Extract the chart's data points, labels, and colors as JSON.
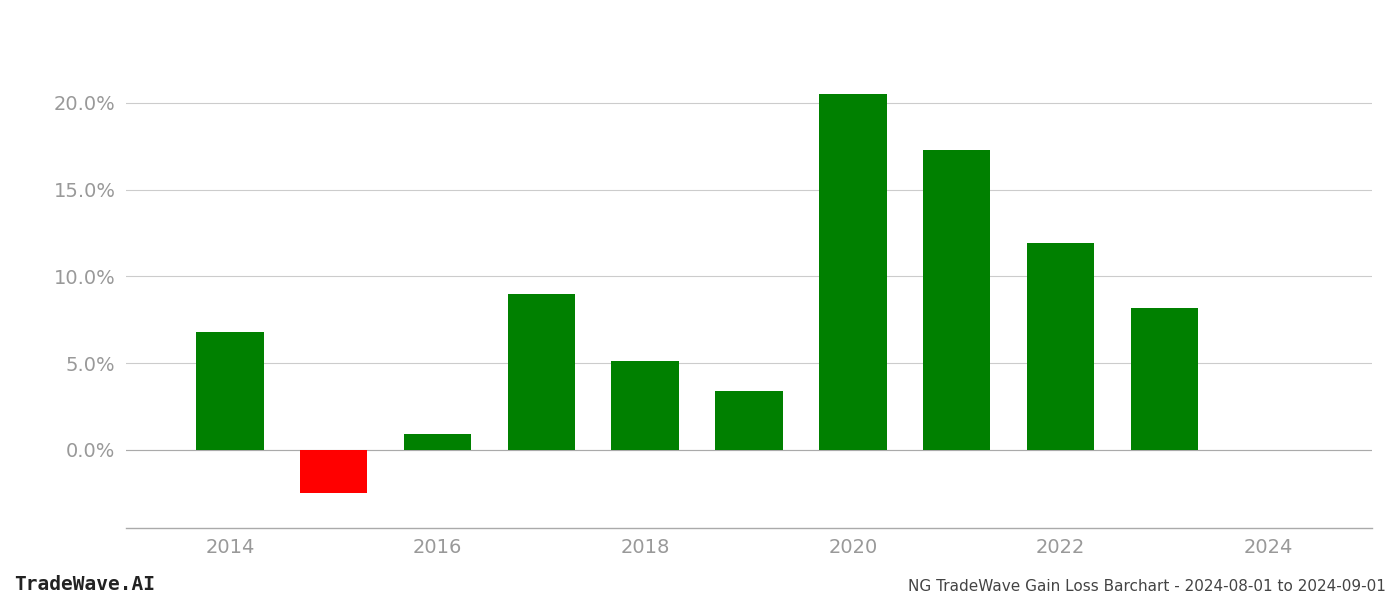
{
  "years": [
    2014,
    2015,
    2016,
    2017,
    2018,
    2019,
    2020,
    2021,
    2022,
    2023
  ],
  "values": [
    0.068,
    -0.025,
    0.009,
    0.09,
    0.051,
    0.034,
    0.205,
    0.173,
    0.119,
    0.082
  ],
  "colors": [
    "#008000",
    "#ff0000",
    "#008000",
    "#008000",
    "#008000",
    "#008000",
    "#008000",
    "#008000",
    "#008000",
    "#008000"
  ],
  "title": "NG TradeWave Gain Loss Barchart - 2024-08-01 to 2024-09-01",
  "watermark": "TradeWave.AI",
  "background_color": "#ffffff",
  "grid_color": "#cccccc",
  "axis_label_color": "#999999",
  "ylim_min": -0.045,
  "ylim_max": 0.235,
  "xlim_min": 2013.0,
  "xlim_max": 2025.0,
  "bar_width": 0.65,
  "yticks": [
    0.0,
    0.05,
    0.1,
    0.15,
    0.2
  ],
  "xticks": [
    2014,
    2016,
    2018,
    2020,
    2022,
    2024
  ],
  "tick_fontsize": 14,
  "watermark_fontsize": 14,
  "title_fontsize": 11
}
